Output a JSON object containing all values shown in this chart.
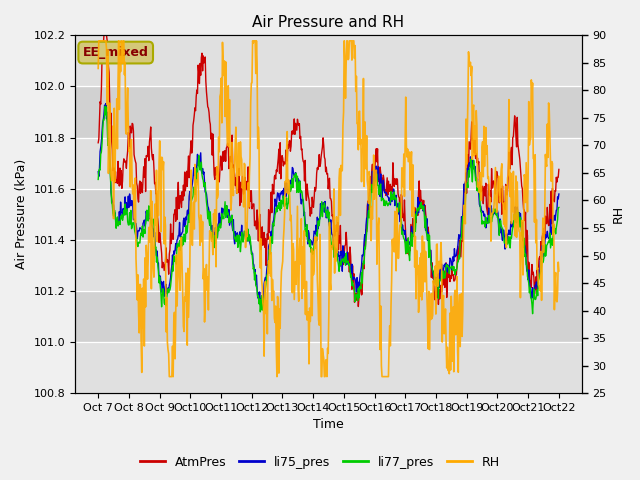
{
  "title": "Air Pressure and RH",
  "xlabel": "Time",
  "ylabel_left": "Air Pressure (kPa)",
  "ylabel_right": "RH",
  "annotation": "EE_mixed",
  "ylim_left": [
    100.8,
    102.2
  ],
  "ylim_right": [
    25,
    90
  ],
  "yticks_left": [
    100.8,
    101.0,
    101.2,
    101.4,
    101.6,
    101.8,
    102.0,
    102.2
  ],
  "yticks_right": [
    25,
    30,
    35,
    40,
    45,
    50,
    55,
    60,
    65,
    70,
    75,
    80,
    85,
    90
  ],
  "xtick_labels": [
    "Oct 7",
    "Oct 8",
    "Oct 9",
    "Oct 10",
    "Oct 11",
    "Oct 12",
    "Oct 13",
    "Oct 14",
    "Oct 15",
    "Oct 16",
    "Oct 17",
    "Oct 18",
    "Oct 19",
    "Oct 20",
    "Oct 21",
    "Oct 22"
  ],
  "n_points": 720,
  "colors": {
    "AtmPres": "#cc0000",
    "li75_pres": "#0000cc",
    "li77_pres": "#00cc00",
    "RH": "#ffaa00"
  },
  "line_widths": {
    "AtmPres": 1.0,
    "li75_pres": 1.0,
    "li77_pres": 1.0,
    "RH": 1.2
  },
  "bg_color": "#f0f0f0",
  "plot_bg_color": "#e0e0e0",
  "grid_color": "#ffffff",
  "hspan_color": "#d0d0d0",
  "annotation_bg": "#d4c87a",
  "annotation_border": "#aaaa00",
  "annotation_text_color": "#880000",
  "annotation_fontsize": 9,
  "title_fontsize": 11,
  "axis_fontsize": 9,
  "tick_fontsize": 8,
  "legend_fontsize": 9
}
